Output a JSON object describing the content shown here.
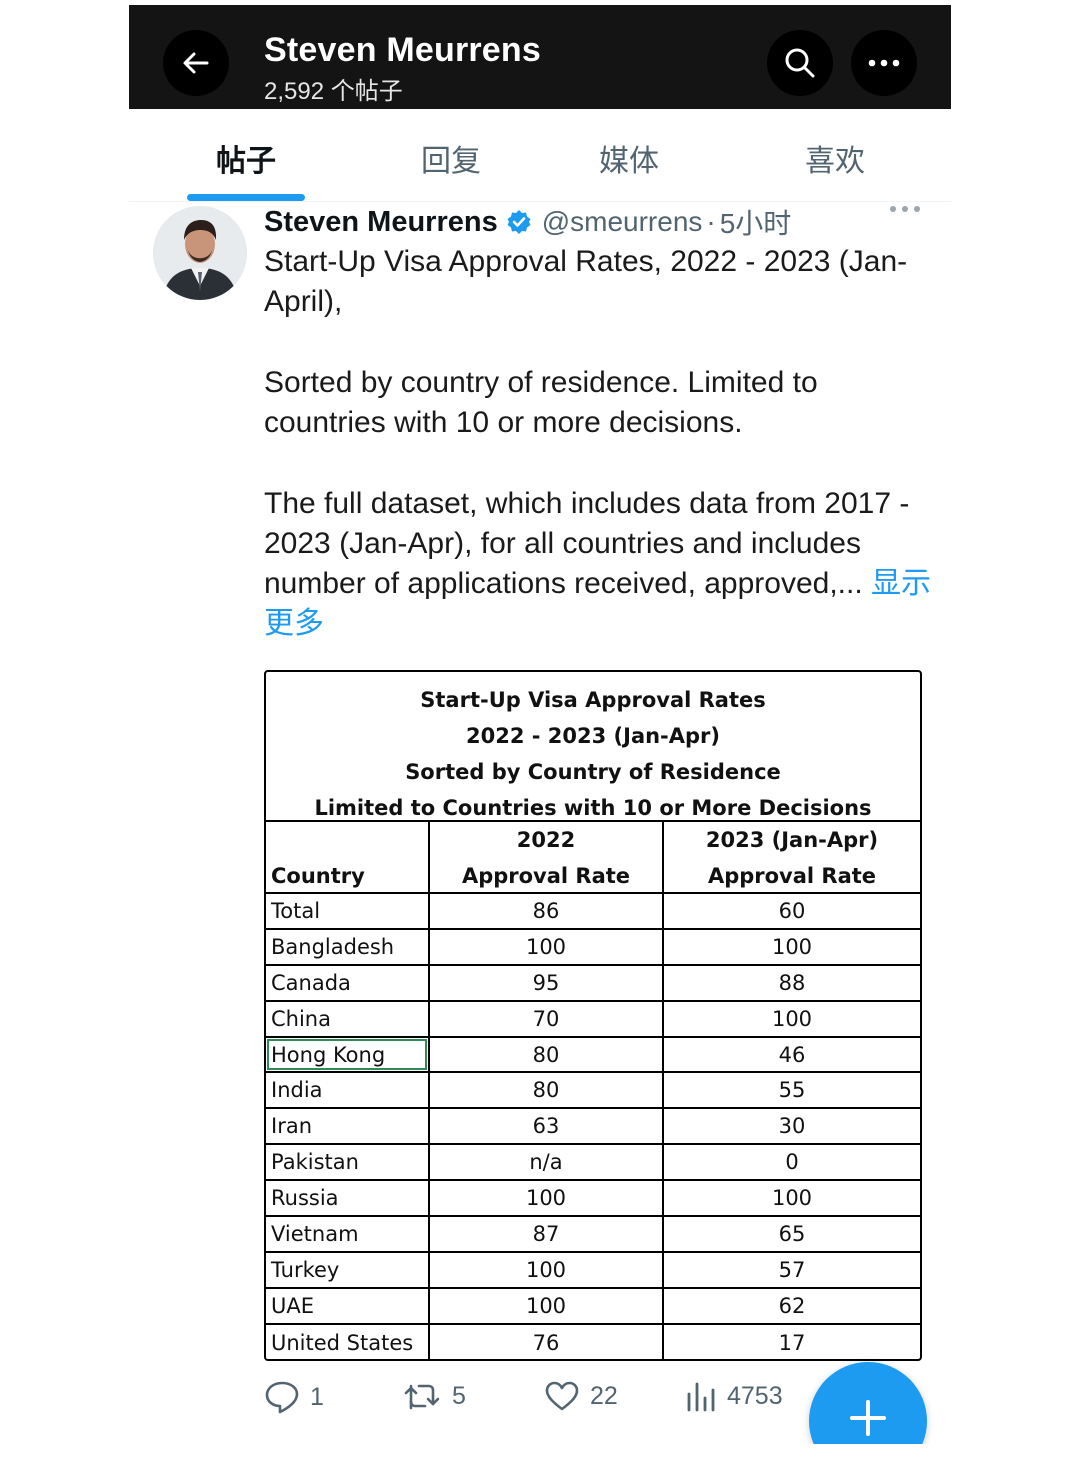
{
  "header": {
    "title": "Steven Meurrens",
    "post_count": "2,592 个帖子"
  },
  "tabs": [
    {
      "label": "帖子",
      "active": true
    },
    {
      "label": "回复",
      "active": false
    },
    {
      "label": "媒体",
      "active": false
    },
    {
      "label": "喜欢",
      "active": false
    }
  ],
  "tweet": {
    "author": "Steven Meurrens",
    "handle": "@smeurrens",
    "separator": "·",
    "time": "5小时",
    "paragraphs": [
      "Start-Up Visa Approval Rates, 2022 - 2023 (Jan-April),",
      "Sorted by country of residence. Limited to countries with 10 or more decisions.",
      "The full dataset, which includes data from 2017 - 2023 (Jan-Apr), for all countries and includes number of applications received, approved,..."
    ],
    "show_more": "显示更多"
  },
  "table": {
    "title_lines": [
      "Start-Up Visa Approval Rates",
      "2022 - 2023 (Jan-Apr)",
      "Sorted by Country of Residence",
      "Limited to Countries with 10 or More Decisions"
    ],
    "columns": [
      {
        "line1": "",
        "line2": "Country"
      },
      {
        "line1": "2022",
        "line2": "Approval Rate"
      },
      {
        "line1": "2023 (Jan-Apr)",
        "line2": "Approval Rate"
      }
    ],
    "rows": [
      [
        "Total",
        "86",
        "60"
      ],
      [
        "Bangladesh",
        "100",
        "100"
      ],
      [
        "Canada",
        "95",
        "88"
      ],
      [
        "China",
        "70",
        "100"
      ],
      [
        "Hong Kong",
        "80",
        "46"
      ],
      [
        "India",
        "80",
        "55"
      ],
      [
        "Iran",
        "63",
        "30"
      ],
      [
        "Pakistan",
        "n/a",
        "0"
      ],
      [
        "Russia",
        "100",
        "100"
      ],
      [
        "Vietnam",
        "87",
        "65"
      ],
      [
        "Turkey",
        "100",
        "57"
      ],
      [
        "UAE",
        "100",
        "62"
      ],
      [
        "United States",
        "76",
        "17"
      ]
    ]
  },
  "actions": {
    "replies": "1",
    "reposts": "5",
    "likes": "22",
    "views": "4753"
  },
  "colors": {
    "accent": "#1d9bf0",
    "header_bg": "#141414",
    "muted": "#536471"
  }
}
